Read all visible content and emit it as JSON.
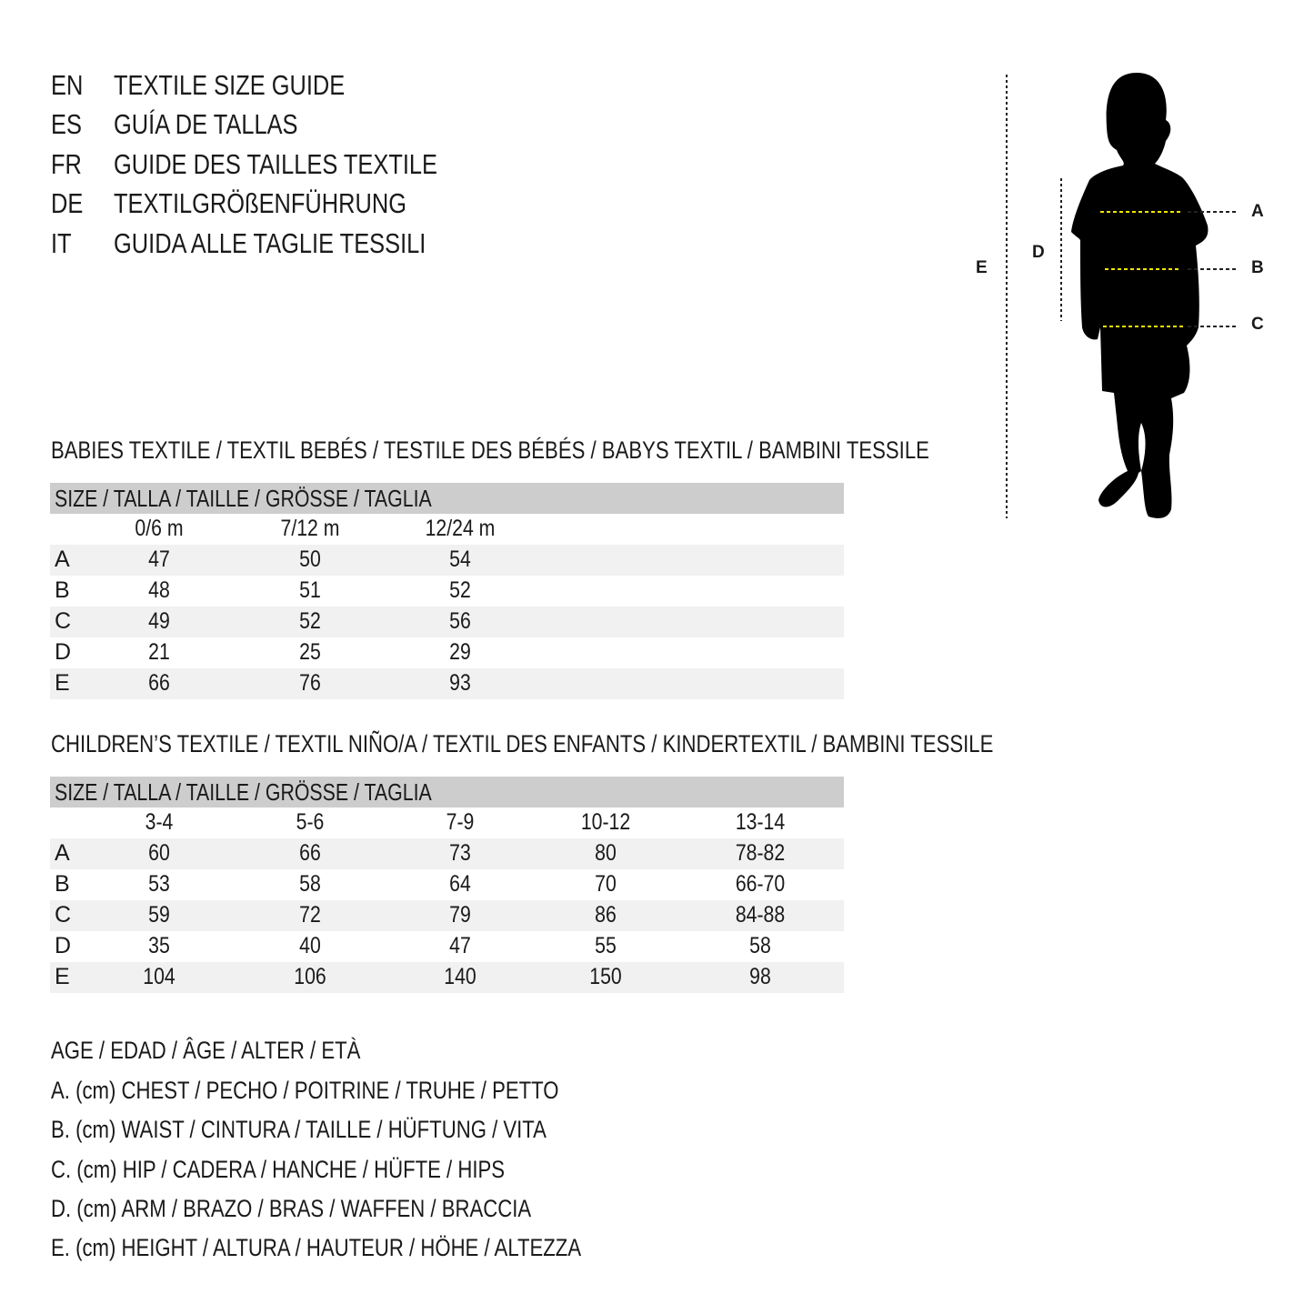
{
  "titles": [
    {
      "code": "EN",
      "text": "TEXTILE SIZE GUIDE"
    },
    {
      "code": "ES",
      "text": "GUÍA DE TALLAS"
    },
    {
      "code": "FR",
      "text": "GUIDE DES TAILLES TEXTILE"
    },
    {
      "code": "DE",
      "text": "TEXTILGRÖßENFÜHRUNG"
    },
    {
      "code": "IT",
      "text": "GUIDA ALLE TAGLIE TESSILI"
    }
  ],
  "figure": {
    "labels": {
      "A": "A",
      "B": "B",
      "C": "C",
      "D": "D",
      "E": "E"
    },
    "guide_color": "#f2e600"
  },
  "babies": {
    "heading": "BABIES TEXTILE / TEXTIL BEBÉS / TESTILE DES BÉBÉS / BABYS TEXTIL / BAMBINI TESSILE",
    "size_header": "SIZE / TALLA / TAILLE / GRÖSSE / TAGLIA",
    "columns": [
      "0/6 m",
      "7/12 m",
      "12/24 m"
    ],
    "rows": [
      {
        "label": "A",
        "values": [
          "47",
          "50",
          "54"
        ]
      },
      {
        "label": "B",
        "values": [
          "48",
          "51",
          "52"
        ]
      },
      {
        "label": "C",
        "values": [
          "49",
          "52",
          "56"
        ]
      },
      {
        "label": "D",
        "values": [
          "21",
          "25",
          "29"
        ]
      },
      {
        "label": "E",
        "values": [
          "66",
          "76",
          "93"
        ]
      }
    ]
  },
  "children": {
    "heading": "CHILDREN’S TEXTILE / TEXTIL NIÑO/A / TEXTIL DES ENFANTS / KINDERTEXTIL / BAMBINI TESSILE",
    "size_header": "SIZE / TALLA / TAILLE / GRÖSSE / TAGLIA",
    "columns": [
      "3-4",
      "5-6",
      "7-9",
      "10-12",
      "13-14"
    ],
    "rows": [
      {
        "label": "A",
        "values": [
          "60",
          "66",
          "73",
          "80",
          "78-82"
        ]
      },
      {
        "label": "B",
        "values": [
          "53",
          "58",
          "64",
          "70",
          "66-70"
        ]
      },
      {
        "label": "C",
        "values": [
          "59",
          "72",
          "79",
          "86",
          "84-88"
        ]
      },
      {
        "label": "D",
        "values": [
          "35",
          "40",
          "47",
          "55",
          "58"
        ]
      },
      {
        "label": "E",
        "values": [
          "104",
          "106",
          "140",
          "150",
          "98"
        ]
      }
    ]
  },
  "legend": [
    "AGE / EDAD / ÂGE / ALTER / ETÀ",
    "A. (cm) CHEST / PECHO / POITRINE / TRUHE / PETTO",
    "B. (cm) WAIST / CINTURA / TAILLE / HÜFTUNG / VITA",
    "C. (cm) HIP / CADERA / HANCHE / HÜFTE / HIPS",
    "D. (cm) ARM / BRAZO / BRAS / WAFFEN / BRACCIA",
    "E. (cm) HEIGHT / ALTURA / HAUTEUR / HÖHE / ALTEZZA"
  ]
}
